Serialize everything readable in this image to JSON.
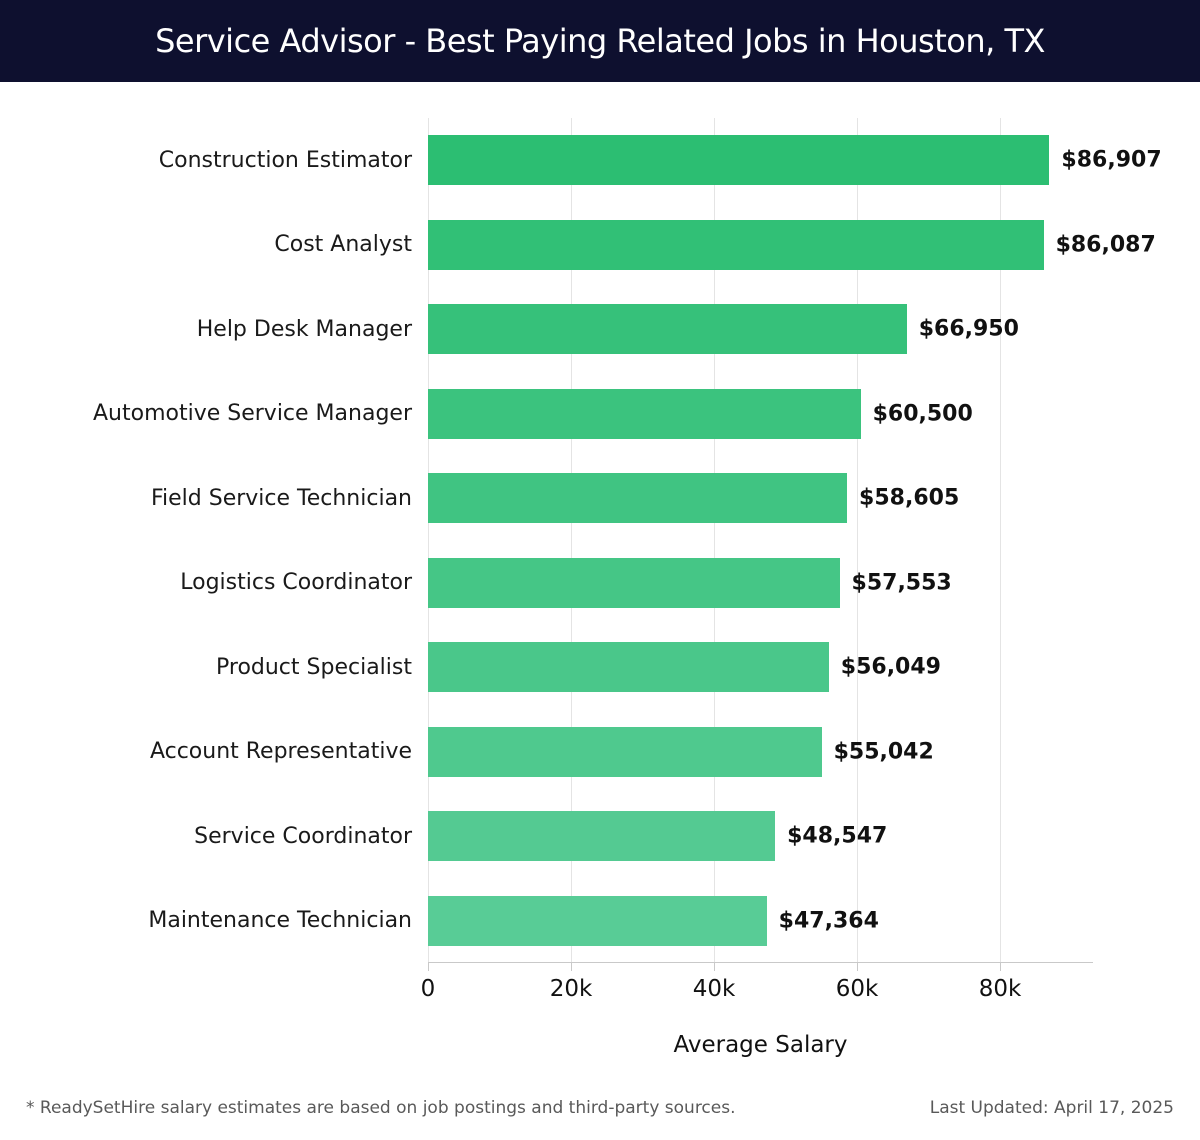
{
  "header": {
    "title": "Service Advisor - Best Paying Related Jobs in Houston, TX",
    "bg_color": "#0E102F"
  },
  "chart_data": {
    "type": "bar",
    "orientation": "horizontal",
    "title": "Service Advisor - Best Paying Related Jobs in Houston, TX",
    "categories": [
      "Construction Estimator",
      "Cost Analyst",
      "Help Desk Manager",
      "Automotive Service Manager",
      "Field Service Technician",
      "Logistics Coordinator",
      "Product Specialist",
      "Account Representative",
      "Service Coordinator",
      "Maintenance Technician"
    ],
    "values": [
      86907,
      86087,
      66950,
      60500,
      58605,
      57553,
      56049,
      55042,
      48547,
      47364
    ],
    "value_labels": [
      "$86,907",
      "$86,087",
      "$66,950",
      "$60,500",
      "$58,605",
      "$57,553",
      "$56,049",
      "$55,042",
      "$48,547",
      "$47,364"
    ],
    "bar_colors": [
      "#2CBE72",
      "#31C076",
      "#36C17A",
      "#3BC37E",
      "#40C482",
      "#45C686",
      "#4AC78A",
      "#4FC98E",
      "#54CA92",
      "#58CC96"
    ],
    "xlabel": "Average Salary",
    "xlim": [
      0,
      93000
    ],
    "x_ticks": [
      {
        "value": 0,
        "label": "0"
      },
      {
        "value": 20000,
        "label": "20k"
      },
      {
        "value": 40000,
        "label": "40k"
      },
      {
        "value": 60000,
        "label": "60k"
      },
      {
        "value": 80000,
        "label": "80k"
      }
    ],
    "grid": true,
    "legend": false
  },
  "footer": {
    "note": "* ReadySetHire salary estimates are based on job postings and third-party sources.",
    "last_updated": "Last Updated: April 17, 2025"
  }
}
